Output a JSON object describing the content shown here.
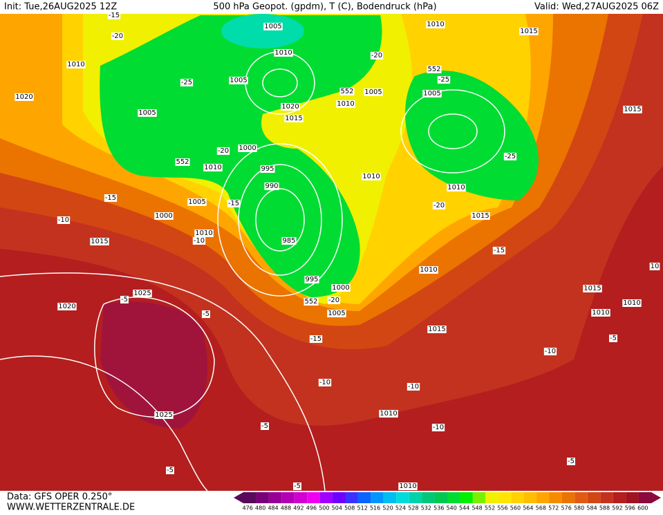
{
  "header": {
    "init": "Init: Tue,26AUG2025 12Z",
    "title": "500 hPa Geopot. (gpdm), T (C), Bodendruck (hPa)",
    "valid": "Valid: Wed,27AUG2025 06Z"
  },
  "footer": {
    "data": "Data: GFS OPER 0.250°",
    "site": "WWW.WETTERZENTRALE.DE"
  },
  "colorbar": {
    "values": [
      476,
      480,
      484,
      488,
      492,
      496,
      500,
      504,
      508,
      512,
      516,
      520,
      524,
      528,
      532,
      536,
      540,
      544,
      548,
      552,
      556,
      560,
      564,
      568,
      572,
      576,
      580,
      584,
      588,
      592,
      596,
      600
    ],
    "colors": [
      "#5a0a5a",
      "#780078",
      "#960096",
      "#b400b4",
      "#d200d2",
      "#f000f0",
      "#a000ff",
      "#6e00ff",
      "#3c32ff",
      "#0a64ff",
      "#0096ff",
      "#00bef0",
      "#00dcdc",
      "#00d2aa",
      "#00c878",
      "#00c850",
      "#00dc32",
      "#00f000",
      "#78f000",
      "#f0f000",
      "#ffe600",
      "#ffd200",
      "#ffbe00",
      "#ffa500",
      "#f58c00",
      "#eb7300",
      "#e15a14",
      "#d24614",
      "#c3321e",
      "#b41e1e",
      "#a0141e",
      "#8c0a3c"
    ]
  },
  "map": {
    "labels": [
      "1005",
      "1010",
      "1015",
      "-15",
      "-20",
      "1010",
      "1020",
      "-25",
      "1005",
      "1010",
      "-20",
      "552",
      "-25",
      "1005",
      "1005",
      "552",
      "1010",
      "1015",
      "1020",
      "1015",
      "1005",
      "-20",
      "1000",
      "552",
      "1010",
      "995",
      "-25",
      "990",
      "1010",
      "1010",
      "-15",
      "1005",
      "-15",
      "-20",
      "1000",
      "1015",
      "-10",
      "1010",
      "-10",
      "1015",
      "985",
      "-15",
      "10",
      "1010",
      "995",
      "1000",
      "1015",
      "1025",
      "-5",
      "552",
      "-20",
      "1010",
      "1020",
      "-5",
      "1005",
      "1010",
      "1015",
      "-15",
      "-5",
      "-10",
      "-10",
      "-10",
      "1025",
      "1010",
      "-5",
      "-10",
      "-5",
      "-5",
      "-5",
      "1010"
    ]
  }
}
